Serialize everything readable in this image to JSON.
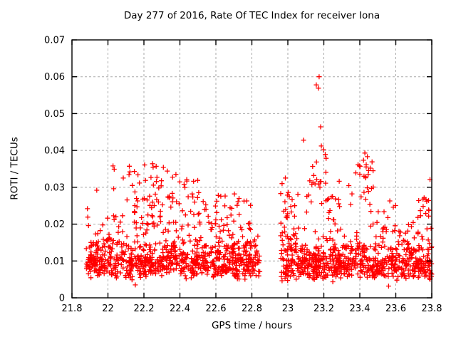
{
  "chart_data": {
    "type": "scatter",
    "title": "Day 277 of 2016, Rate Of TEC Index for receiver Iona",
    "xlabel": "GPS time / hours",
    "ylabel": "ROTI / TECUs",
    "xlim": [
      21.8,
      23.8
    ],
    "ylim": [
      0,
      0.07
    ],
    "xtick_values": [
      21.8,
      22,
      22.2,
      22.4,
      22.6,
      22.8,
      23,
      23.2,
      23.4,
      23.6,
      23.8
    ],
    "xtick_labels": [
      "21.8",
      "22",
      "22.2",
      "22.4",
      "22.6",
      "22.8",
      "23",
      "23.2",
      "23.4",
      "23.6",
      "23.8"
    ],
    "ytick_values": [
      0,
      0.01,
      0.02,
      0.03,
      0.04,
      0.05,
      0.06,
      0.07
    ],
    "ytick_labels": [
      "0",
      "0.01",
      "0.02",
      "0.03",
      "0.04",
      "0.05",
      "0.06",
      "0.07"
    ],
    "grid": true,
    "legend": "none",
    "marker": "plus",
    "marker_color": "#ff0000",
    "grid_color": "#a9a9a9",
    "axis_color": "#000000",
    "background": "#ffffff",
    "data_gap_hours": [
      22.85,
      22.96
    ],
    "series": [
      {
        "name": "ROTI",
        "seed": 277,
        "notable_points": [
          [
            21.886,
            0.0242
          ],
          [
            21.888,
            0.0219
          ],
          [
            21.892,
            0.0196
          ],
          [
            21.938,
            0.0292
          ],
          [
            22.028,
            0.0358
          ],
          [
            22.035,
            0.0349
          ],
          [
            22.032,
            0.0296
          ],
          [
            22.085,
            0.0325
          ],
          [
            22.248,
            0.0364
          ],
          [
            22.268,
            0.0357
          ],
          [
            22.308,
            0.0354
          ],
          [
            22.33,
            0.0344
          ],
          [
            22.378,
            0.0335
          ],
          [
            22.438,
            0.0321
          ],
          [
            22.468,
            0.0282
          ],
          [
            22.718,
            0.0251
          ],
          [
            22.772,
            0.0263
          ],
          [
            22.152,
            0.0035
          ],
          [
            22.968,
            0.031
          ],
          [
            22.986,
            0.0325
          ],
          [
            23.002,
            0.0286
          ],
          [
            23.087,
            0.0428
          ],
          [
            23.158,
            0.0578
          ],
          [
            23.17,
            0.0569
          ],
          [
            23.174,
            0.06
          ],
          [
            23.182,
            0.0464
          ],
          [
            23.186,
            0.0412
          ],
          [
            23.198,
            0.0402
          ],
          [
            23.208,
            0.0389
          ],
          [
            23.378,
            0.0339
          ],
          [
            23.398,
            0.0358
          ],
          [
            23.428,
            0.0393
          ],
          [
            23.442,
            0.0383
          ],
          [
            23.458,
            0.0352
          ],
          [
            23.468,
            0.0369
          ],
          [
            23.752,
            0.0248
          ],
          [
            23.772,
            0.0262
          ],
          [
            23.79,
            0.0321
          ],
          [
            23.56,
            0.0032
          ]
        ],
        "density_bands": [
          {
            "x0": 21.88,
            "x1": 22.845,
            "y0": 0.0045,
            "y1": 0.016,
            "n": 520,
            "dist": "tri"
          },
          {
            "x0": 21.88,
            "x1": 22.845,
            "y0": 0.006,
            "y1": 0.011,
            "n": 190,
            "dist": "uniform"
          },
          {
            "x0": 21.9,
            "x1": 22.845,
            "y0": 0.014,
            "y1": 0.021,
            "n": 90,
            "dist": "pow",
            "skew": 1.6
          },
          {
            "x0": 21.97,
            "x1": 22.1,
            "y0": 0.015,
            "y1": 0.023,
            "n": 10,
            "dist": "uniform"
          },
          {
            "x0": 22.1,
            "x1": 22.37,
            "y0": 0.024,
            "y1": 0.0365,
            "n": 32,
            "dist": "uniform"
          },
          {
            "x0": 22.12,
            "x1": 22.55,
            "y0": 0.018,
            "y1": 0.027,
            "n": 45,
            "dist": "uniform"
          },
          {
            "x0": 22.33,
            "x1": 22.55,
            "y0": 0.026,
            "y1": 0.034,
            "n": 16,
            "dist": "uniform"
          },
          {
            "x0": 22.55,
            "x1": 22.8,
            "y0": 0.018,
            "y1": 0.0285,
            "n": 30,
            "dist": "uniform"
          },
          {
            "x0": 22.96,
            "x1": 23.8,
            "y0": 0.004,
            "y1": 0.015,
            "n": 480,
            "dist": "tri"
          },
          {
            "x0": 22.96,
            "x1": 23.8,
            "y0": 0.0055,
            "y1": 0.0105,
            "n": 170,
            "dist": "uniform"
          },
          {
            "x0": 22.96,
            "x1": 23.8,
            "y0": 0.013,
            "y1": 0.019,
            "n": 80,
            "dist": "pow",
            "skew": 1.4
          },
          {
            "x0": 22.96,
            "x1": 23.06,
            "y0": 0.015,
            "y1": 0.0295,
            "n": 26,
            "dist": "uniform"
          },
          {
            "x0": 23.1,
            "x1": 23.3,
            "y0": 0.02,
            "y1": 0.032,
            "n": 26,
            "dist": "uniform"
          },
          {
            "x0": 23.13,
            "x1": 23.22,
            "y0": 0.03,
            "y1": 0.041,
            "n": 10,
            "dist": "uniform"
          },
          {
            "x0": 23.33,
            "x1": 23.48,
            "y0": 0.025,
            "y1": 0.0375,
            "n": 22,
            "dist": "uniform"
          },
          {
            "x0": 23.45,
            "x1": 23.6,
            "y0": 0.016,
            "y1": 0.027,
            "n": 18,
            "dist": "uniform"
          },
          {
            "x0": 23.6,
            "x1": 23.75,
            "y0": 0.015,
            "y1": 0.021,
            "n": 14,
            "dist": "uniform"
          },
          {
            "x0": 23.72,
            "x1": 23.8,
            "y0": 0.018,
            "y1": 0.028,
            "n": 14,
            "dist": "uniform"
          }
        ]
      }
    ]
  }
}
